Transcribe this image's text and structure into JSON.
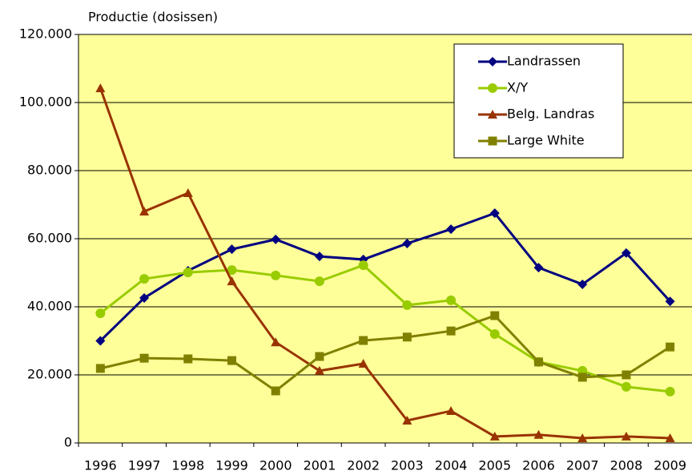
{
  "chart_data": {
    "type": "line",
    "title": "Productie (dosissen)",
    "categories": [
      "1996",
      "1997",
      "1998",
      "1999",
      "2000",
      "2001",
      "2002",
      "2003",
      "2004",
      "2005",
      "2006",
      "2007",
      "2008",
      "2009"
    ],
    "series": [
      {
        "name": "Landrassen",
        "color": "#000080",
        "marker": "diamond",
        "values": [
          30000,
          42600,
          50600,
          56900,
          59800,
          54800,
          53900,
          58600,
          62800,
          67500,
          51500,
          46600,
          55800,
          41600
        ]
      },
      {
        "name": "X/Y",
        "color": "#99cc00",
        "marker": "circle",
        "values": [
          38100,
          48200,
          50100,
          50800,
          49200,
          47500,
          52200,
          40500,
          41900,
          32000,
          23800,
          21200,
          16500,
          15100
        ]
      },
      {
        "name": "Belg. Landras",
        "color": "#993300",
        "marker": "triangle",
        "values": [
          104200,
          68000,
          73400,
          47500,
          29600,
          21200,
          23300,
          6600,
          9400,
          1900,
          2400,
          1400,
          1900,
          1400
        ]
      },
      {
        "name": "Large White",
        "color": "#808000",
        "marker": "square",
        "values": [
          21900,
          24900,
          24700,
          24200,
          15300,
          25400,
          30100,
          31100,
          32900,
          37400,
          23800,
          19300,
          20000,
          28200
        ]
      }
    ],
    "ylim": [
      0,
      120000
    ],
    "yticks": [
      0,
      {
        "value": 20000,
        "label": "20.000"
      },
      {
        "value": 40000,
        "label": "40.000"
      },
      {
        "value": 60000,
        "label": "60.000"
      },
      {
        "value": 80000,
        "label": "80.000"
      },
      {
        "value": 100000,
        "label": "100.000"
      },
      {
        "value": 120000,
        "label": "120.000"
      }
    ],
    "grid": true,
    "legend": "upper right",
    "plot_background": "#ffff99"
  }
}
